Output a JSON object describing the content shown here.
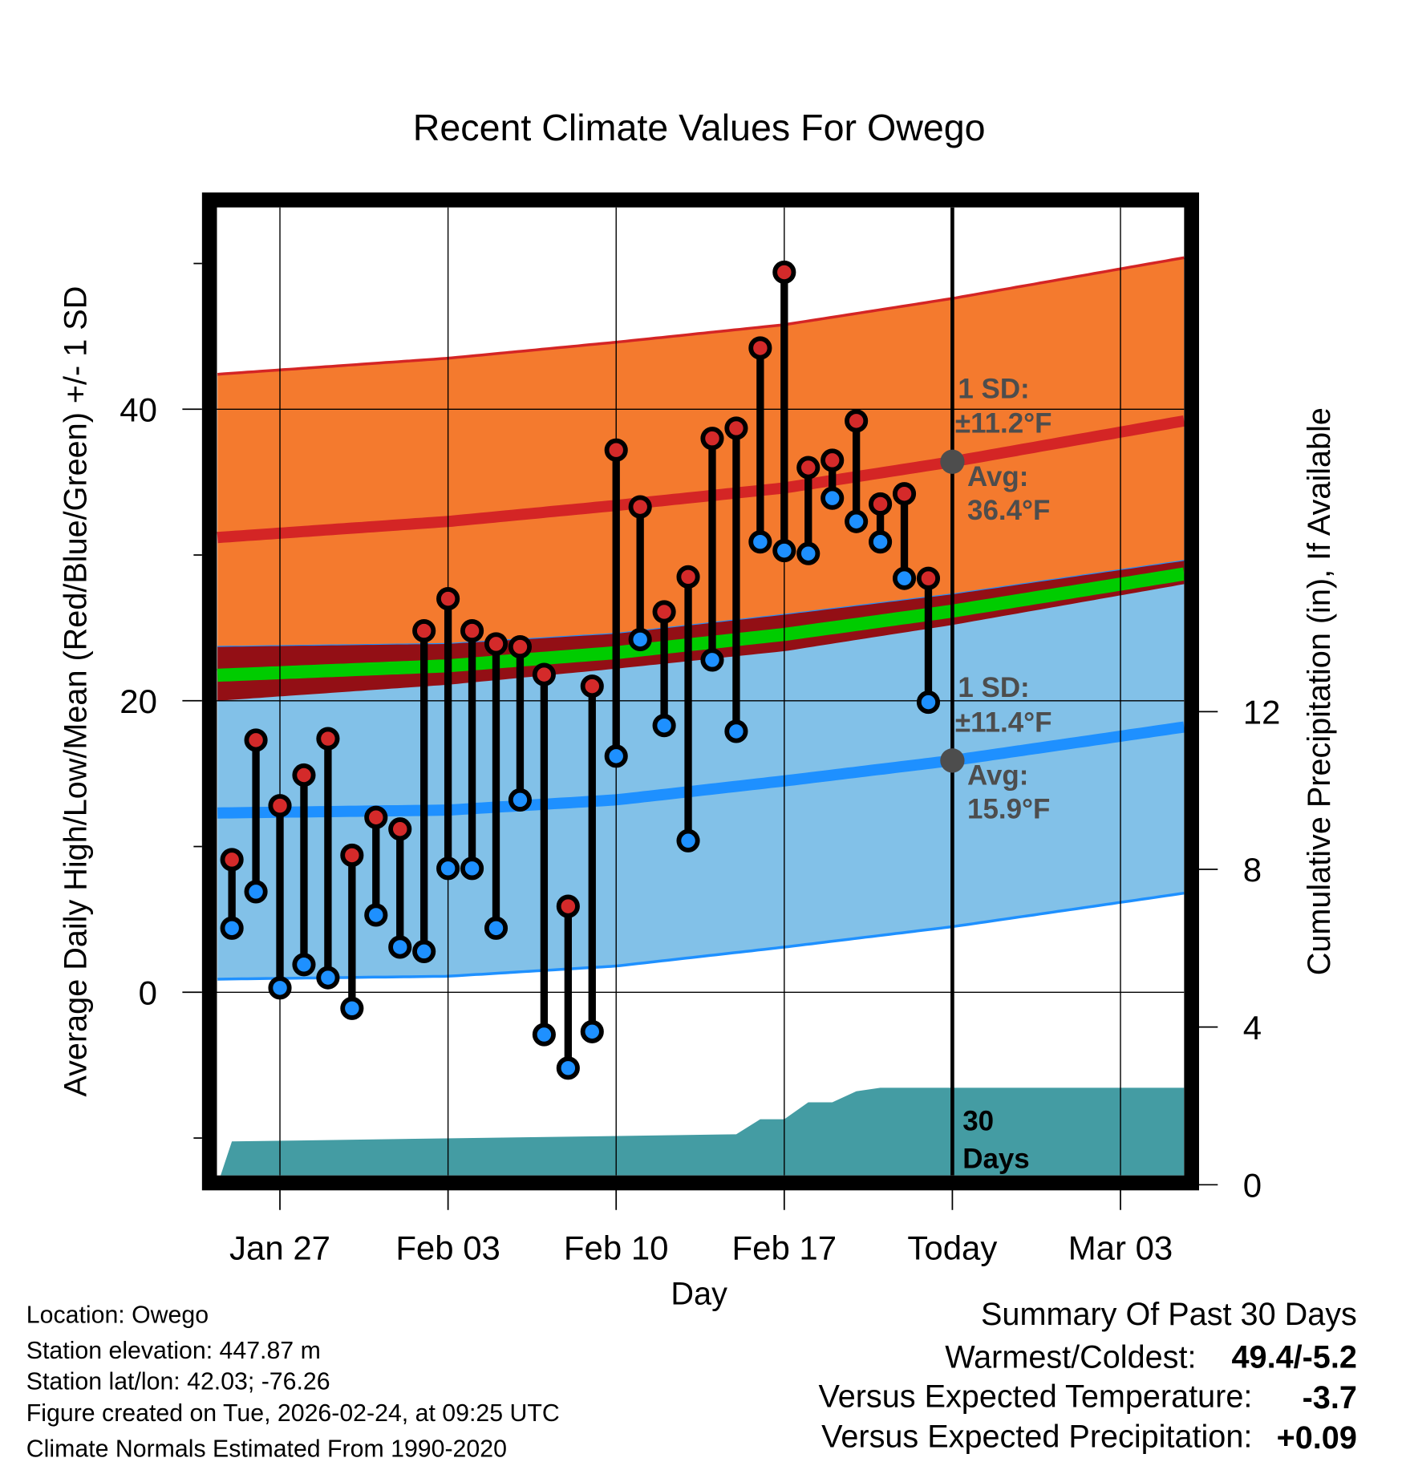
{
  "chart_data": {
    "type": "line",
    "title": "Recent Climate Values For Owego",
    "xlabel": "Day",
    "ylabel": "Average Daily High/Low/Mean (Red/Blue/Green) +/- 1 SD",
    "y2label": "Cumulative Precipitation (in), If Available",
    "ylim": [
      -12.6,
      53.8
    ],
    "y2lim": [
      0,
      24.8
    ],
    "x_range_days_from_jan25": [
      -0.6,
      39.65
    ],
    "x_ticks": [
      {
        "day": 2,
        "label": "Jan 27"
      },
      {
        "day": 9,
        "label": "Feb 03"
      },
      {
        "day": 16,
        "label": "Feb 10"
      },
      {
        "day": 23,
        "label": "Feb 17"
      },
      {
        "day": 30,
        "label": "Today"
      },
      {
        "day": 37,
        "label": "Mar 03"
      }
    ],
    "y_ticks": [
      {
        "value": 0,
        "label": "0"
      },
      {
        "value": 20,
        "label": "20"
      },
      {
        "value": 40,
        "label": "40"
      }
    ],
    "y_minor_ticks": [
      -10,
      10,
      30,
      50
    ],
    "y2_ticks": [
      {
        "value": 0,
        "label": "0"
      },
      {
        "value": 4,
        "label": "4"
      },
      {
        "value": 8,
        "label": "8"
      },
      {
        "value": 12,
        "label": "12"
      }
    ],
    "grid": true,
    "dates": [
      "Jan 25",
      "Jan 26",
      "Jan 27",
      "Jan 28",
      "Jan 29",
      "Jan 30",
      "Jan 31",
      "Feb 01",
      "Feb 02",
      "Feb 03",
      "Feb 04",
      "Feb 05",
      "Feb 06",
      "Feb 07",
      "Feb 08",
      "Feb 09",
      "Feb 10",
      "Feb 11",
      "Feb 12",
      "Feb 13",
      "Feb 14",
      "Feb 15",
      "Feb 16",
      "Feb 17",
      "Feb 18",
      "Feb 19",
      "Feb 20",
      "Feb 21",
      "Feb 22",
      "Feb 23"
    ],
    "series": [
      {
        "name": "Daily High",
        "color": "#d42a2a",
        "values": [
          9.1,
          17.3,
          12.8,
          14.9,
          17.4,
          9.4,
          12.0,
          11.2,
          24.8,
          27.0,
          24.8,
          23.9,
          23.7,
          21.8,
          5.9,
          21.0,
          37.2,
          33.3,
          26.1,
          28.5,
          38.0,
          38.7,
          44.2,
          49.4,
          36.0,
          36.5,
          39.2,
          33.5,
          34.2,
          28.4
        ]
      },
      {
        "name": "Daily Low",
        "color": "#1e90ff",
        "values": [
          4.4,
          6.9,
          0.3,
          1.9,
          1.0,
          -1.1,
          5.3,
          3.1,
          2.8,
          8.5,
          8.5,
          4.4,
          13.2,
          -2.9,
          -5.2,
          -2.7,
          16.2,
          24.2,
          18.3,
          10.4,
          22.8,
          17.9,
          30.9,
          30.3,
          30.1,
          33.9,
          32.3,
          30.9,
          28.4,
          19.9
        ]
      }
    ],
    "normals": {
      "days": [
        -0.6,
        9,
        16,
        23,
        30,
        39.65
      ],
      "high_mean": [
        31.2,
        32.3,
        33.4,
        34.6,
        36.4,
        39.2
      ],
      "low_mean": [
        12.3,
        12.5,
        13.2,
        14.5,
        15.9,
        18.2
      ],
      "high_sd": 11.2,
      "low_sd": 11.4,
      "colors": {
        "high_band": "#f47a2e",
        "high_line": "#d42525",
        "low_band": "#82c1e8",
        "low_line": "#1e90ff",
        "overlap": "#930f15",
        "mean_line": "#00cc00"
      }
    },
    "precipitation": {
      "color": "#449ca3",
      "days": [
        -0.6,
        0,
        21,
        22,
        23,
        24,
        25,
        26,
        27,
        39.65
      ],
      "cumulative_in": [
        0,
        1.1,
        1.28,
        1.66,
        1.66,
        2.09,
        2.09,
        2.37,
        2.46,
        2.46
      ]
    },
    "annotations": {
      "high_sd_label": "1 SD:",
      "high_sd_value": "±11.2°F",
      "high_avg_label": "Avg:",
      "high_avg_value": "36.4°F",
      "low_sd_label": "1 SD:",
      "low_sd_value": "±11.4°F",
      "low_avg_label": "Avg:",
      "low_avg_value": "15.9°F",
      "window_count": "30",
      "window_unit": "Days",
      "high_avg": 36.4,
      "low_avg": 15.9
    }
  },
  "footer": {
    "location": "Location: Owego",
    "elevation": "Station elevation: 447.87 m",
    "latlon": "Station lat/lon: 42.03; -76.26",
    "created": "Figure created on Tue, 2026-02-24, at 09:25 UTC",
    "normals": "Climate Normals Estimated From 1990-2020"
  },
  "summary": {
    "title": "Summary Of Past 30 Days",
    "warmest_label": "Warmest/Coldest:",
    "warmest_value": "49.4/-5.2",
    "temp_label": "Versus Expected Temperature:",
    "temp_value": "-3.7",
    "temp_color": "#1e90ff",
    "precip_label": "Versus Expected Precipitation:",
    "precip_value": "+0.09",
    "precip_color": "#00bb00"
  }
}
